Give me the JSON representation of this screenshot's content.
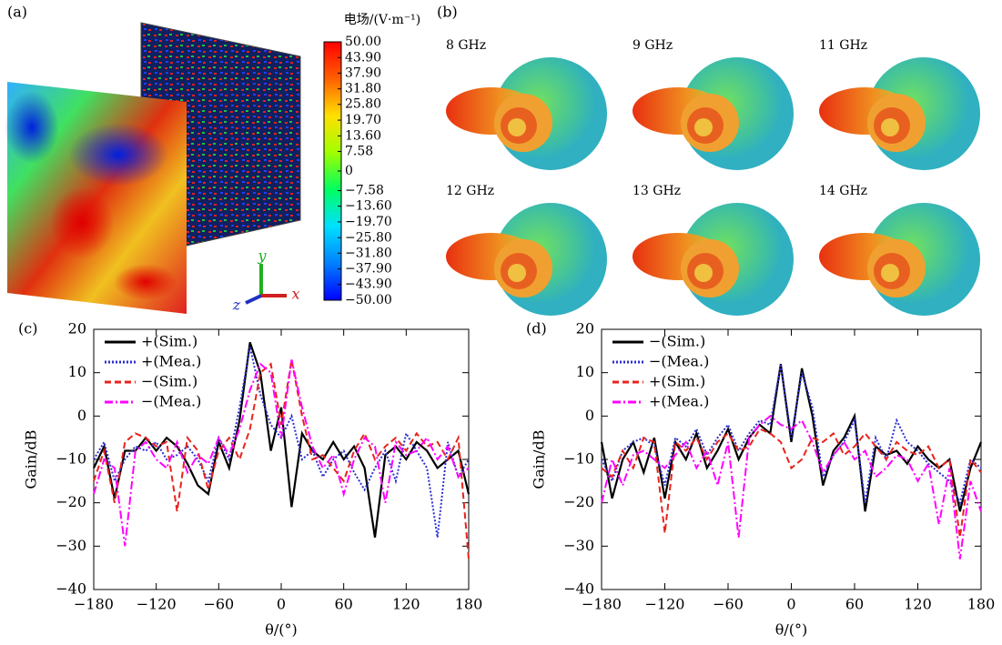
{
  "panel_a": {
    "label": "(a)",
    "axis_labels": [
      "y",
      "z",
      "x"
    ]
  },
  "panel_b": {
    "label": "(b)",
    "captions": [
      "8 GHz",
      "9 GHz",
      "11 GHz",
      "12 GHz",
      "13 GHz",
      "14 GHz"
    ]
  },
  "chart_data": [
    {
      "type": "colorbar",
      "title": "电场/(V·m⁻¹)",
      "colormap": [
        "#0000ff",
        "#0080ff",
        "#00e0ff",
        "#00ff60",
        "#a0ff00",
        "#ffe000",
        "#ff6000",
        "#ff0000"
      ],
      "ylim": [
        -50,
        50
      ],
      "yticks": [
        {
          "value": 50,
          "label": "50.00"
        },
        {
          "value": 43.9,
          "label": "43.90"
        },
        {
          "value": 37.9,
          "label": "37.90"
        },
        {
          "value": 31.8,
          "label": "31.80"
        },
        {
          "value": 25.8,
          "label": "25.80"
        },
        {
          "value": 19.7,
          "label": "19.70"
        },
        {
          "value": 13.6,
          "label": "13.60"
        },
        7.58,
        0,
        {
          "value": -7.58,
          "label": "−7.58"
        },
        {
          "value": -13.6,
          "label": "−13.60"
        },
        {
          "value": -19.7,
          "label": "−19.70"
        },
        {
          "value": -25.8,
          "label": "−25.80"
        },
        {
          "value": -31.8,
          "label": "−31.80"
        },
        {
          "value": -37.9,
          "label": "−37.90"
        },
        {
          "value": -43.9,
          "label": "−43.90"
        },
        {
          "value": -50,
          "label": "−50.00"
        }
      ]
    },
    {
      "type": "line",
      "panel_label": "(c)",
      "x_label": "θ/(°)",
      "y_label": "Gain/dB",
      "legend": "upper left",
      "x": [
        -180,
        -170,
        -160,
        -150,
        -140,
        -130,
        -120,
        -110,
        -100,
        -90,
        -80,
        -70,
        -60,
        -50,
        -40,
        -30,
        -20,
        -10,
        0,
        10,
        20,
        30,
        40,
        50,
        60,
        70,
        80,
        90,
        100,
        110,
        120,
        130,
        140,
        150,
        160,
        170,
        180
      ],
      "xlim": [
        -180,
        180
      ],
      "ylim": [
        -40,
        20
      ],
      "xticks": [
        {
          "value": -180,
          "label": "−180"
        },
        {
          "value": -120,
          "label": "−120"
        },
        {
          "value": -60,
          "label": "−60"
        },
        0,
        60,
        120,
        180
      ],
      "yticks": [
        {
          "value": -40,
          "label": "−40"
        },
        {
          "value": -30,
          "label": "−30"
        },
        {
          "value": -20,
          "label": "−20"
        },
        {
          "value": -10,
          "label": "−10"
        },
        0,
        10,
        20
      ],
      "series": [
        {
          "name": "+(Sim.)",
          "color": "#000000",
          "style": "solid",
          "values": [
            -12,
            -7,
            -19,
            -8,
            -8,
            -5,
            -8,
            -5,
            -7,
            -11,
            -16,
            -18,
            -6,
            -12,
            -1,
            17,
            10,
            -8,
            2,
            -21,
            -4,
            -8,
            -10,
            -6,
            -10,
            -7,
            -12,
            -28,
            -9,
            -7,
            -10,
            -6,
            -8,
            -12,
            -10,
            -8,
            -18
          ]
        },
        {
          "name": "+(Mea.)",
          "color": "#2d2dd0",
          "style": "dotted",
          "values": [
            -10,
            -6,
            -15,
            -10,
            -7,
            -8,
            -6,
            -10,
            -9,
            -7,
            -10,
            -15,
            -5,
            -10,
            2,
            16,
            5,
            -2,
            -5,
            0,
            -10,
            -8,
            -14,
            -10,
            -8,
            -13,
            -17,
            -12,
            -8,
            -15,
            -4,
            -8,
            -12,
            -28,
            -6,
            -14,
            -10
          ]
        },
        {
          "name": "−(Sim.)",
          "color": "#e8231c",
          "style": "dashed",
          "values": [
            -15,
            -8,
            -20,
            -6,
            -4,
            -5,
            -7,
            -6,
            -22,
            -5,
            -8,
            -17,
            -8,
            -5,
            -10,
            -3,
            10,
            12,
            -2,
            13,
            0,
            -10,
            -9,
            -12,
            -15,
            -8,
            -4,
            -10,
            -7,
            -5,
            -8,
            -4,
            -7,
            -6,
            -10,
            -5,
            -33
          ]
        },
        {
          "name": "−(Mea.)",
          "color": "#ff00ff",
          "style": "dashdot",
          "values": [
            -18,
            -10,
            -12,
            -30,
            -8,
            -6,
            -10,
            -12,
            -6,
            -13,
            -9,
            -11,
            -5,
            -9,
            -3,
            6,
            12,
            10,
            -5,
            13,
            2,
            -7,
            -12,
            -9,
            -18,
            -10,
            -5,
            -7,
            -20,
            -6,
            -9,
            -8,
            -5,
            -10,
            -7,
            -14,
            -12
          ]
        }
      ]
    },
    {
      "type": "line",
      "panel_label": "(d)",
      "x_label": "θ/(°)",
      "y_label": "Gain/dB",
      "legend": "upper left",
      "x": [
        -180,
        -170,
        -160,
        -150,
        -140,
        -130,
        -120,
        -110,
        -100,
        -90,
        -80,
        -70,
        -60,
        -50,
        -40,
        -30,
        -20,
        -10,
        0,
        10,
        20,
        30,
        40,
        50,
        60,
        70,
        80,
        90,
        100,
        110,
        120,
        130,
        140,
        150,
        160,
        170,
        180
      ],
      "xlim": [
        -180,
        180
      ],
      "ylim": [
        -40,
        20
      ],
      "xticks": [
        {
          "value": -180,
          "label": "−180"
        },
        {
          "value": -120,
          "label": "−120"
        },
        {
          "value": -60,
          "label": "−60"
        },
        0,
        60,
        120,
        180
      ],
      "yticks": [
        {
          "value": -40,
          "label": "−40"
        },
        {
          "value": -30,
          "label": "−30"
        },
        {
          "value": -20,
          "label": "−20"
        },
        {
          "value": -10,
          "label": "−10"
        },
        0,
        10,
        20
      ],
      "series": [
        {
          "name": "−(Sim.)",
          "color": "#000000",
          "style": "solid",
          "values": [
            -6,
            -19,
            -10,
            -6,
            -13,
            -5,
            -19,
            -6,
            -10,
            -4,
            -12,
            -8,
            -3,
            -10,
            -5,
            -2,
            -4,
            12,
            -6,
            11,
            0,
            -16,
            -8,
            -5,
            0,
            -22,
            -7,
            -9,
            -8,
            -11,
            -7,
            -10,
            -12,
            -10,
            -22,
            -12,
            -6
          ]
        },
        {
          "name": "−(Mea.)",
          "color": "#2d2dd0",
          "style": "dotted",
          "values": [
            -10,
            -15,
            -8,
            -6,
            -5,
            -7,
            -16,
            -5,
            -7,
            -3,
            -9,
            -5,
            -2,
            -8,
            -4,
            -1,
            -2,
            12,
            -5,
            10,
            2,
            -14,
            -9,
            -6,
            -1,
            -20,
            -5,
            -10,
            -1,
            -6,
            -8,
            -11,
            -13,
            -15,
            -20,
            -10,
            -12
          ]
        },
        {
          "name": "+(Sim.)",
          "color": "#e8231c",
          "style": "dashed",
          "values": [
            -12,
            -14,
            -8,
            -12,
            -5,
            -6,
            -27,
            -6,
            -8,
            -5,
            -10,
            -6,
            -4,
            -8,
            -7,
            -3,
            -4,
            -6,
            -12,
            -10,
            -5,
            -6,
            -4,
            -9,
            -7,
            -4,
            -7,
            -10,
            -6,
            -8,
            -9,
            -7,
            -12,
            -10,
            -28,
            -10,
            -13
          ]
        },
        {
          "name": "+(Mea.)",
          "color": "#ff00ff",
          "style": "dashdot",
          "values": [
            -20,
            -10,
            -16,
            -9,
            -8,
            -10,
            -12,
            -9,
            -6,
            -12,
            -8,
            -16,
            -6,
            -28,
            -5,
            -2,
            0,
            -2,
            -3,
            -1,
            -6,
            -13,
            -9,
            -6,
            -10,
            -8,
            -14,
            -12,
            -9,
            -10,
            -15,
            -11,
            -25,
            -12,
            -33,
            -15,
            -22
          ]
        }
      ]
    }
  ]
}
